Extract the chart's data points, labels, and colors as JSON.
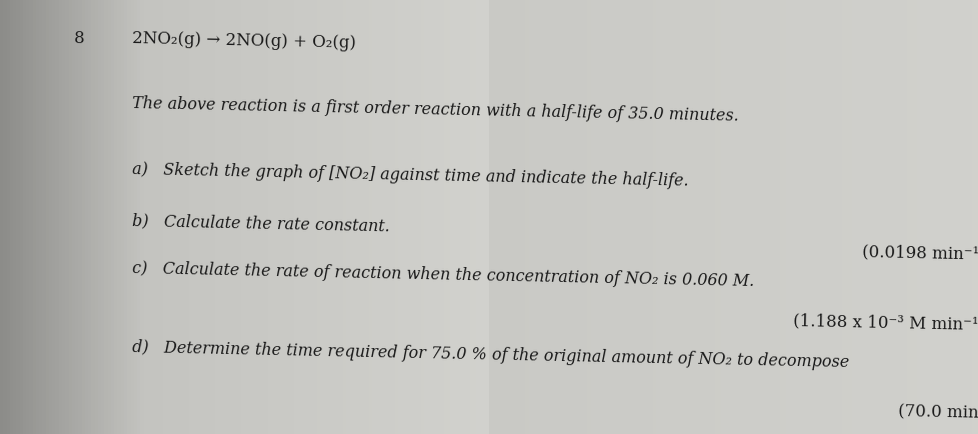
{
  "fig_width": 9.79,
  "fig_height": 4.34,
  "question_number": "8",
  "reaction": "2NO₂(g) → 2NO(g) + O₂(g)",
  "line1": "The above reaction is a first order reaction with a half-life of 35.0 minutes.",
  "part_a": "a)   Sketch the graph of [NO₂] against time and indicate the half-life.",
  "part_b": "b)   Calculate the rate constant.",
  "answer_b": "(0.0198 min⁻¹",
  "part_c": "c)   Calculate the rate of reaction when the concentration of NO₂ is 0.060 M.",
  "answer_c": "(1.188 x 10⁻³ M min⁻¹",
  "part_d": "d)   Determine the time required for 75.0 % of the original amount of NO₂ to decompose",
  "answer_d": "(70.0 min",
  "bg_left": "#a0a0a0",
  "bg_mid": "#c8c5c0",
  "bg_right": "#d0cdc8",
  "text_color": "#1a1a1a",
  "font_size_reaction": 12,
  "font_size_text": 11.5,
  "font_size_answer": 12
}
